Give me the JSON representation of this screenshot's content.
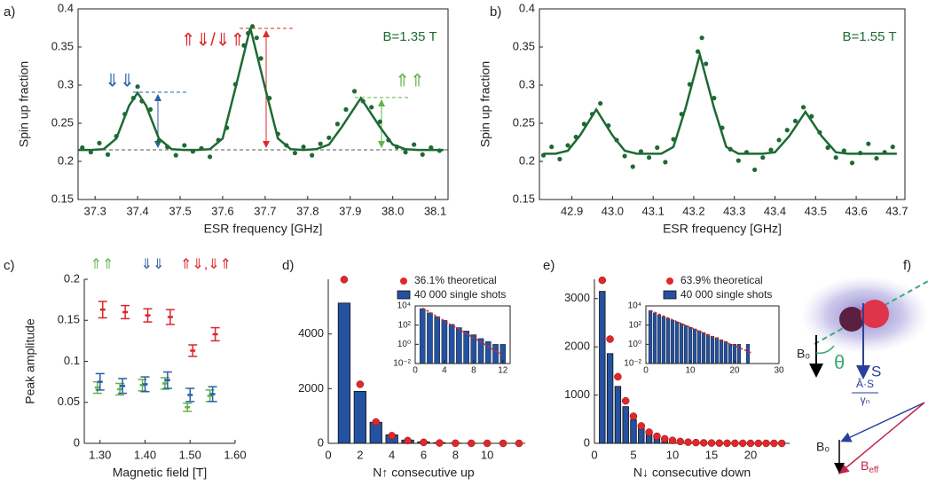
{
  "panel_labels": [
    "a)",
    "b)",
    "c)",
    "d)",
    "e)",
    "f)"
  ],
  "chart_data": [
    {
      "type": "scatter",
      "xlabel": "ESR frequency [GHz]",
      "ylabel": "Spin up fraction",
      "color": "#1d6a33",
      "xlim": [
        37.26,
        38.13
      ],
      "ylim": [
        0.15,
        0.4
      ],
      "xticks": [
        37.3,
        37.4,
        37.5,
        37.6,
        37.7,
        37.8,
        37.9,
        {
          "value": 38,
          "label": "38.0"
        },
        38.1
      ],
      "yticks": [
        0.15,
        0.2,
        0.25,
        0.3,
        0.35,
        0.4
      ],
      "annotations": [
        {
          "text": "B=1.35 T",
          "color": "#1d6a33"
        },
        {
          "text": "⇑⇓/⇓⇑",
          "color": "#e0282a"
        },
        {
          "text": "⇓⇓",
          "color": "#2a5ea8"
        },
        {
          "text": "⇑⇑",
          "color": "#62b346"
        }
      ],
      "x": [
        37.27,
        37.29,
        37.31,
        37.33,
        37.35,
        37.37,
        37.39,
        37.4,
        37.41,
        37.43,
        37.45,
        37.47,
        37.49,
        37.51,
        37.53,
        37.55,
        37.57,
        37.59,
        37.61,
        37.63,
        37.65,
        37.66,
        37.67,
        37.68,
        37.69,
        37.71,
        37.73,
        37.75,
        37.77,
        37.79,
        37.81,
        37.83,
        37.85,
        37.87,
        37.89,
        37.91,
        37.93,
        37.95,
        37.97,
        37.99,
        38.01,
        38.03,
        38.05,
        38.07,
        38.09,
        38.11
      ],
      "values": [
        0.218,
        0.212,
        0.224,
        0.209,
        0.233,
        0.262,
        0.283,
        0.298,
        0.279,
        0.268,
        0.227,
        0.219,
        0.208,
        0.221,
        0.213,
        0.217,
        0.206,
        0.228,
        0.244,
        0.301,
        0.352,
        0.368,
        0.377,
        0.362,
        0.335,
        0.283,
        0.236,
        0.221,
        0.211,
        0.219,
        0.208,
        0.223,
        0.231,
        0.249,
        0.268,
        0.292,
        0.279,
        0.271,
        0.252,
        0.228,
        0.219,
        0.212,
        0.222,
        0.209,
        0.218,
        0.214
      ],
      "fit": {
        "x": [
          37.26,
          37.29,
          37.32,
          37.35,
          37.38,
          37.4,
          37.42,
          37.45,
          37.48,
          37.51,
          37.54,
          37.57,
          37.6,
          37.63,
          37.665,
          37.7,
          37.73,
          37.76,
          37.79,
          37.82,
          37.85,
          37.88,
          37.925,
          37.97,
          38.0,
          38.03,
          38.06,
          38.09,
          38.12
        ],
        "values": [
          0.215,
          0.215,
          0.216,
          0.23,
          0.273,
          0.29,
          0.273,
          0.23,
          0.216,
          0.215,
          0.215,
          0.216,
          0.23,
          0.296,
          0.375,
          0.296,
          0.23,
          0.216,
          0.215,
          0.216,
          0.222,
          0.245,
          0.283,
          0.245,
          0.222,
          0.216,
          0.215,
          0.215,
          0.215
        ]
      }
    },
    {
      "type": "scatter",
      "xlabel": "ESR frequency [GHz]",
      "ylabel": "Spin up fraction",
      "color": "#1d6a33",
      "xlim": [
        42.82,
        43.72
      ],
      "ylim": [
        0.15,
        0.4
      ],
      "xticks": [
        42.9,
        {
          "value": 43,
          "label": "43.0"
        },
        43.1,
        43.2,
        43.3,
        43.4,
        43.5,
        43.6,
        43.7
      ],
      "yticks": [
        0.15,
        0.2,
        0.25,
        0.3,
        0.35,
        0.4
      ],
      "annotations": [
        {
          "text": "B=1.55 T",
          "color": "#1d6a33"
        }
      ],
      "x": [
        42.83,
        42.85,
        42.87,
        42.89,
        42.91,
        42.93,
        42.95,
        42.97,
        42.99,
        43.01,
        43.03,
        43.05,
        43.07,
        43.09,
        43.11,
        43.13,
        43.15,
        43.17,
        43.19,
        43.21,
        43.22,
        43.23,
        43.25,
        43.27,
        43.29,
        43.31,
        43.33,
        43.35,
        43.37,
        43.39,
        43.41,
        43.43,
        43.45,
        43.47,
        43.49,
        43.51,
        43.53,
        43.55,
        43.57,
        43.59,
        43.61,
        43.63,
        43.65,
        43.67,
        43.69
      ],
      "values": [
        0.208,
        0.219,
        0.203,
        0.221,
        0.232,
        0.249,
        0.262,
        0.276,
        0.247,
        0.228,
        0.207,
        0.193,
        0.213,
        0.205,
        0.218,
        0.199,
        0.229,
        0.262,
        0.301,
        0.344,
        0.362,
        0.328,
        0.283,
        0.244,
        0.216,
        0.201,
        0.212,
        0.189,
        0.205,
        0.215,
        0.228,
        0.241,
        0.253,
        0.271,
        0.259,
        0.238,
        0.218,
        0.205,
        0.214,
        0.198,
        0.211,
        0.223,
        0.204,
        0.212,
        0.219
      ],
      "fit": {
        "x": [
          42.83,
          42.86,
          42.89,
          42.92,
          42.96,
          43.0,
          43.03,
          43.06,
          43.09,
          43.12,
          43.15,
          43.18,
          43.215,
          43.25,
          43.28,
          43.31,
          43.34,
          43.37,
          43.4,
          43.435,
          43.475,
          43.515,
          43.55,
          43.58,
          43.61,
          43.64,
          43.67,
          43.7
        ],
        "values": [
          0.21,
          0.21,
          0.214,
          0.234,
          0.268,
          0.234,
          0.214,
          0.21,
          0.21,
          0.21,
          0.219,
          0.27,
          0.34,
          0.27,
          0.219,
          0.21,
          0.21,
          0.21,
          0.212,
          0.233,
          0.265,
          0.233,
          0.212,
          0.21,
          0.21,
          0.21,
          0.21,
          0.21
        ]
      }
    },
    {
      "type": "errorbar",
      "xlabel": "Magnetic field [T]",
      "ylabel": "Peak amplitude",
      "xlim": [
        1.265,
        1.6
      ],
      "ylim": [
        0,
        0.2
      ],
      "xticks": [
        {
          "value": 1.3,
          "label": "1.30"
        },
        {
          "value": 1.4,
          "label": "1.40"
        },
        {
          "value": 1.5,
          "label": "1.50"
        },
        {
          "value": 1.6,
          "label": "1.60"
        }
      ],
      "yticks": [
        0,
        0.05,
        0.1,
        0.15,
        0.2
      ],
      "x": [
        1.3,
        1.35,
        1.4,
        1.45,
        1.5,
        1.55
      ],
      "series": [
        {
          "name": "⇑⇑",
          "color": "#62b346",
          "values": [
            0.068,
            0.066,
            0.071,
            0.073,
            0.044,
            0.058
          ],
          "errors": [
            0.007,
            0.007,
            0.007,
            0.007,
            0.005,
            0.007
          ]
        },
        {
          "name": "⇓⇓",
          "color": "#2a5ea8",
          "values": [
            0.075,
            0.07,
            0.072,
            0.077,
            0.059,
            0.06
          ],
          "errors": [
            0.01,
            0.009,
            0.009,
            0.01,
            0.008,
            0.009
          ]
        },
        {
          "name": "⇑⇓,⇓⇑",
          "color": "#d9262c",
          "values": [
            0.163,
            0.16,
            0.156,
            0.154,
            0.113,
            0.133
          ],
          "errors": [
            0.01,
            0.008,
            0.008,
            0.009,
            0.007,
            0.008
          ]
        }
      ]
    },
    {
      "type": "bar",
      "xlabel": "N↑  consecutive up",
      "xlim": [
        0,
        12
      ],
      "ylim": [
        0,
        6000
      ],
      "xticks": [
        0,
        2,
        4,
        6,
        8,
        10
      ],
      "yticks": [
        0,
        2000,
        4000
      ],
      "x": [
        1,
        2,
        3,
        4,
        5,
        6,
        7,
        8,
        9,
        10,
        11,
        12
      ],
      "series": [
        {
          "name": "36.1% theoretical",
          "type": "scatter",
          "color": "#e0282a",
          "values": [
            5990,
            2160,
            780,
            280,
            100,
            36,
            13,
            4.7,
            1.7,
            0.6,
            0.2,
            0.08
          ]
        },
        {
          "name": "40 000 single shots",
          "type": "bar",
          "color": "#2451a0",
          "values": [
            5130,
            1900,
            770,
            310,
            120,
            55,
            25,
            10,
            4,
            2,
            1,
            1
          ]
        }
      ],
      "inset": {
        "yscale": "log",
        "xlim": [
          0,
          13
        ],
        "ylim": [
          0.01,
          10000
        ],
        "xticks": [
          0,
          4,
          8,
          12
        ],
        "yticks": [
          {
            "value": 0.01,
            "label": "10⁻²"
          },
          {
            "value": 1,
            "label": "10⁰"
          },
          {
            "value": 100,
            "label": "10²"
          },
          {
            "value": 10000,
            "label": "10⁴"
          }
        ]
      }
    },
    {
      "type": "bar",
      "xlabel": "N↓  consecutive down",
      "xlim": [
        0,
        25
      ],
      "ylim": [
        0,
        3400
      ],
      "xticks": [
        0,
        5,
        10,
        15,
        20
      ],
      "yticks": [
        0,
        1000,
        2000,
        3000
      ],
      "x": [
        1,
        2,
        3,
        4,
        5,
        6,
        7,
        8,
        9,
        10,
        11,
        12,
        13,
        14,
        15,
        16,
        17,
        18,
        19,
        20,
        21,
        22,
        23,
        24
      ],
      "series": [
        {
          "name": "63.9% theoretical",
          "type": "scatter",
          "color": "#e0282a",
          "values": [
            3380,
            2160,
            1380,
            880,
            560,
            360,
            230,
            147,
            94,
            60,
            38,
            24,
            15.6,
            10,
            6.4,
            4.1,
            2.6,
            1.7,
            1.1,
            0.7,
            0.45,
            0.29,
            0.18,
            0.12
          ]
        },
        {
          "name": "40 000 single shots",
          "type": "bar",
          "color": "#2451a0",
          "values": [
            3150,
            1860,
            1180,
            760,
            490,
            320,
            210,
            140,
            90,
            60,
            40,
            26,
            17,
            11,
            7,
            5,
            3,
            2,
            1,
            1,
            1,
            0,
            1,
            0
          ]
        }
      ],
      "inset": {
        "yscale": "log",
        "xlim": [
          0,
          30
        ],
        "ylim": [
          0.01,
          10000
        ],
        "xticks": [
          0,
          10,
          20,
          30
        ],
        "yticks": [
          {
            "value": 0.01,
            "label": "10⁻²"
          },
          {
            "value": 1,
            "label": "10⁰"
          },
          {
            "value": 100,
            "label": "10²"
          },
          {
            "value": 10000,
            "label": "10⁴"
          }
        ]
      }
    }
  ],
  "diagram": {
    "b0_top": "B₀",
    "theta": "θ",
    "s": "S",
    "numerator": "Â·S",
    "denominator": "γₙ",
    "b0_bottom": "B₀",
    "beff": {
      "main": "B",
      "sub": "eff"
    }
  }
}
